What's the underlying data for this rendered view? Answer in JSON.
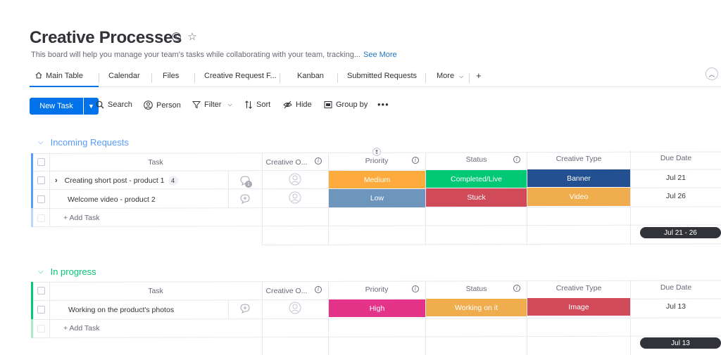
{
  "board": {
    "title": "Creative Processes",
    "description": "This board will help you manage your team's tasks while collaborating with your team, tracking...",
    "see_more": "See More"
  },
  "tabs": [
    "Main Table",
    "Calendar",
    "Files",
    "Creative Request F...",
    "Kanban",
    "Submitted Requests",
    "More",
    "+"
  ],
  "toolbar": {
    "new_task": "New Task",
    "search": "Search",
    "person": "Person",
    "filter": "Filter",
    "sort": "Sort",
    "hide": "Hide",
    "group_by": "Group by",
    "more": "•••"
  },
  "columns": {
    "task": "Task",
    "creative_owner": "Creative O...",
    "priority": "Priority",
    "status": "Status",
    "creative_type": "Creative Type",
    "due_date": "Due Date"
  },
  "groups": [
    {
      "name": "Incoming Requests",
      "color": "#579bfc",
      "rows": [
        {
          "task": "Creating short post - product 1",
          "subitems": "4",
          "updates": "1",
          "priority": "Medium",
          "priority_color": "#fdab3d",
          "status": "Completed/Live",
          "status_color": "#00c875",
          "type": "Banner",
          "type_color": "#225091",
          "due": "Jul 21"
        },
        {
          "task": "Welcome video - product 2",
          "priority": "Low",
          "priority_color": "#579bfc",
          "status": "Stuck",
          "status_color": "#e2445c",
          "type": "Video",
          "type_color": "#fdab3d",
          "due": "Jul 26"
        }
      ],
      "add_task": "+ Add Task",
      "summary_due": "Jul 21 - 26"
    },
    {
      "name": "In progress",
      "color": "#00c875",
      "rows": [
        {
          "task": "Working on the product's photos",
          "priority": "High",
          "priority_color": "#ff158a",
          "status": "Working on it",
          "status_color": "#fdab3d",
          "type": "Image",
          "type_color": "#e2445c",
          "due": "Jul 13"
        }
      ],
      "add_task": "+ Add Task",
      "summary_due": "Jul 13"
    }
  ]
}
